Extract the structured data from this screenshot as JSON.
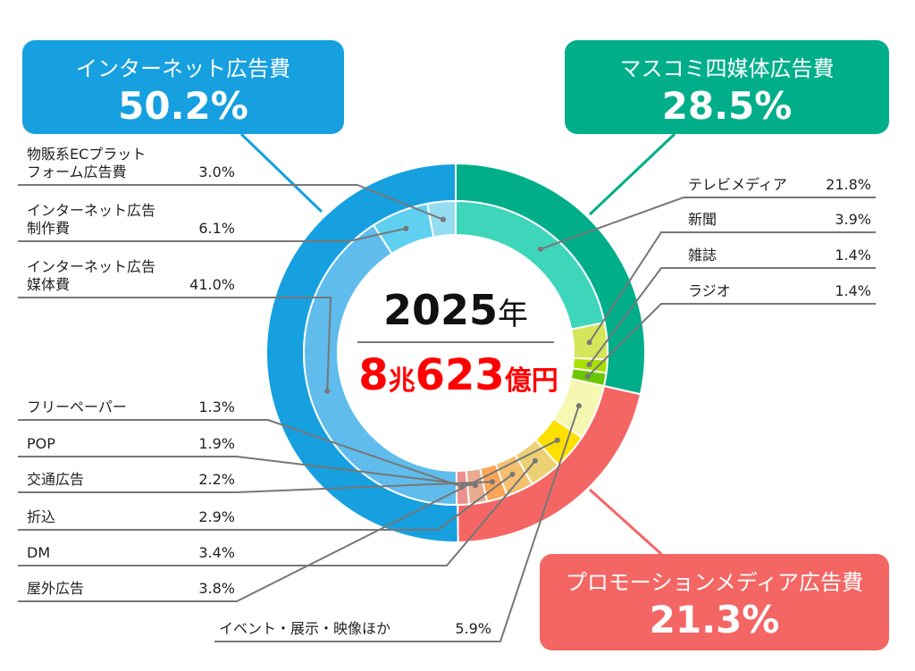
{
  "chart_data": {
    "type": "pie",
    "center": {
      "year": "2025",
      "year_unit": "年",
      "total_a": "8",
      "total_a_unit": "兆",
      "total_b": "623",
      "total_b_unit": "億円"
    },
    "outer": [
      {
        "name": "マスコミ四媒体広告費",
        "label": "28.5%",
        "value": 28.5,
        "color": "#00ae8a"
      },
      {
        "name": "プロモーションメディア広告費",
        "label": "21.3%",
        "value": 21.3,
        "color": "#f46664"
      },
      {
        "name": "インターネット広告費",
        "label": "50.2%",
        "value": 50.2,
        "color": "#16a0e0"
      }
    ],
    "inner": [
      {
        "name": "テレビメディア",
        "label": "21.8%",
        "value": 21.8,
        "color": "#3dd6bb"
      },
      {
        "name": "新聞",
        "label": "3.9%",
        "value": 3.9,
        "color": "#d6e65a"
      },
      {
        "name": "雑誌",
        "label": "1.4%",
        "value": 1.4,
        "color": "#a8e000"
      },
      {
        "name": "ラジオ",
        "label": "1.4%",
        "value": 1.4,
        "color": "#6ac800"
      },
      {
        "name": "イベント・展示・映像ほか",
        "label": "5.9%",
        "value": 5.9,
        "color": "#f6f7b0"
      },
      {
        "name": "屋外広告",
        "label": "3.8%",
        "value": 3.8,
        "color": "#fde000"
      },
      {
        "name": "DM",
        "label": "3.4%",
        "value": 3.4,
        "color": "#ecd074"
      },
      {
        "name": "折込",
        "label": "2.9%",
        "value": 2.9,
        "color": "#f5c070"
      },
      {
        "name": "交通広告",
        "label": "2.2%",
        "value": 2.2,
        "color": "#fca556"
      },
      {
        "name": "POP",
        "label": "1.9%",
        "value": 1.9,
        "color": "#e8ac90"
      },
      {
        "name": "フリーペーパー",
        "label": "1.3%",
        "value": 1.3,
        "color": "#ee9090"
      },
      {
        "name": "インターネット広告媒体費",
        "label": "41.0%",
        "value": 41.0,
        "color": "#5fbcec"
      },
      {
        "name": "インターネット広告制作費",
        "label": "6.1%",
        "value": 6.1,
        "color": "#60d0f0"
      },
      {
        "name": "物販系ECプラットフォーム広告費",
        "label": "3.0%",
        "value": 3.0,
        "color": "#94dcf0"
      }
    ],
    "inner_display_names": [
      "テレビメディア",
      "新聞",
      "雑誌",
      "ラジオ",
      "イベント・展示・映像ほか",
      "屋外広告",
      "DM",
      "折込",
      "交通広告",
      "POP",
      "フリーペーパー",
      "インターネット広告\n媒体費",
      "インターネット広告\n制作費",
      "物販系ECプラット\nフォーム広告費"
    ]
  }
}
